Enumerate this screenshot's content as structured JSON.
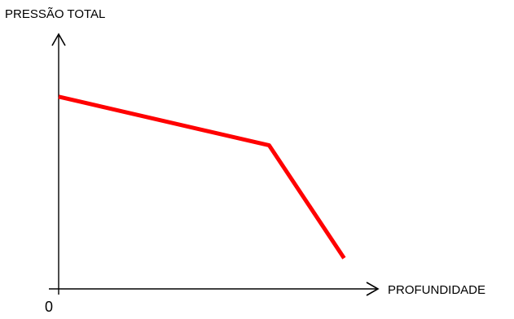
{
  "chart_data": {
    "type": "line",
    "title": "",
    "ylabel": "PRESSÃO TOTAL",
    "xlabel": "PROFUNDIDADE",
    "origin_label": "0",
    "grid": false,
    "legend": "none",
    "xlim": [
      0,
      1
    ],
    "ylim": [
      0,
      1
    ],
    "series": [
      {
        "color": "#ff0000",
        "x": [
          0,
          0.59,
          0.8
        ],
        "y": [
          0.75,
          0.56,
          0.12
        ]
      }
    ]
  }
}
